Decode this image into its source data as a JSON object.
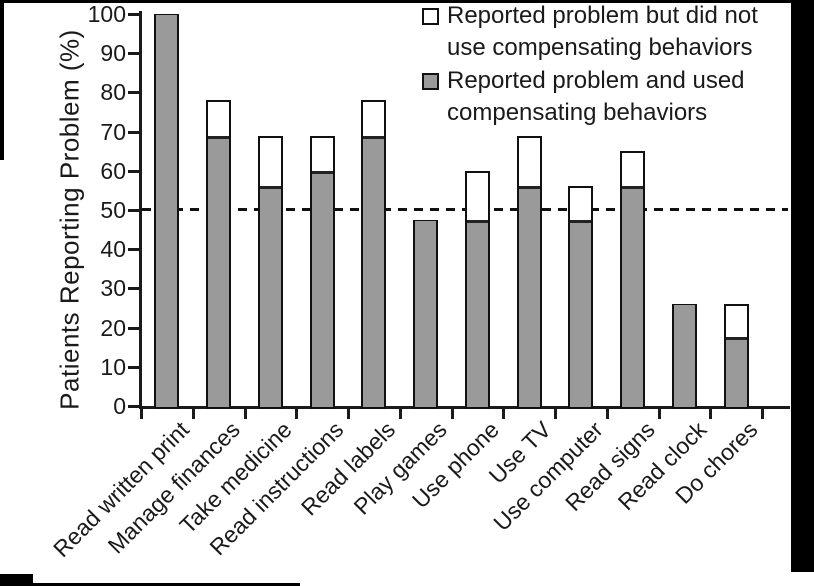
{
  "figure": {
    "ylabel": "Patients Reporting Problem (%)",
    "legend": {
      "item1_line1": "Reported problem but did not",
      "item1_line2": "use compensating behaviors",
      "item2_line1": "Reported problem and used",
      "item2_line2": "compensating behaviors"
    }
  },
  "chart_data": {
    "type": "bar",
    "stacked": true,
    "title": "",
    "xlabel": "",
    "ylabel": "Patients Reporting Problem (%)",
    "categories": [
      "Read written print",
      "Manage finances",
      "Take medicine",
      "Read instructions",
      "Read labels",
      "Play games",
      "Use phone",
      "Use TV",
      "Use computer",
      "Read signs",
      "Read clock",
      "Do chores"
    ],
    "series": [
      {
        "name": "Reported problem and used compensating behaviors",
        "color": "#9a9a9a",
        "values": [
          100,
          69,
          56,
          60,
          69,
          47.5,
          47.5,
          56,
          47.5,
          56,
          26,
          17.5
        ]
      },
      {
        "name": "Reported problem but did not use compensating behaviors",
        "color": "#ffffff",
        "values": [
          0,
          9,
          13,
          9,
          9,
          0,
          12.5,
          13,
          8.5,
          9,
          0,
          8.5
        ]
      }
    ],
    "totals": [
      100,
      78,
      69,
      69,
      78,
      47.5,
      60,
      69,
      56,
      65,
      26,
      26
    ],
    "ylim": [
      0,
      100
    ],
    "yticks": [
      0,
      10,
      20,
      30,
      40,
      50,
      60,
      70,
      80,
      90,
      100
    ],
    "reference_line": {
      "y": 50,
      "style": "dashed"
    },
    "legend_position": "top-right",
    "grid": false
  },
  "colors": {
    "bar_gray": "#9a9a9a",
    "ink": "#111111",
    "background": "#ffffff"
  }
}
